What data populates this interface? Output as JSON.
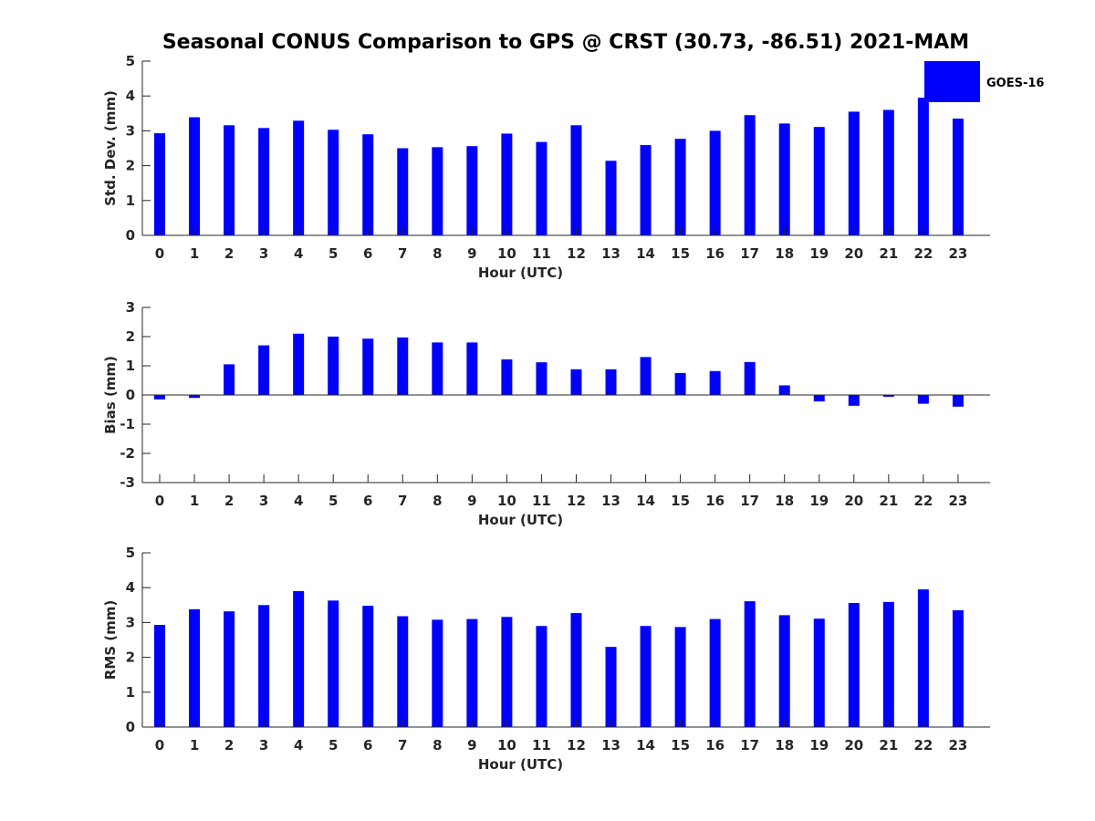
{
  "figure": {
    "title": "Seasonal CONUS Comparison to GPS @ CRST (30.73, -86.51) 2021-MAM",
    "legend_label": "GOES-16",
    "legend_placement": "top-right",
    "bar_color": "#0000ff"
  },
  "chart_data": [
    {
      "type": "bar",
      "panel": "std-dev",
      "title": "Seasonal CONUS Comparison to GPS @ CRST (30.73, -86.51) 2021-MAM",
      "xlabel": "Hour (UTC)",
      "ylabel": "Std. Dev. (mm)",
      "ylim": [
        0,
        5
      ],
      "yticks": [
        0,
        1,
        2,
        3,
        4,
        5
      ],
      "categories": [
        "0",
        "1",
        "2",
        "3",
        "4",
        "5",
        "6",
        "7",
        "8",
        "9",
        "10",
        "11",
        "12",
        "13",
        "14",
        "15",
        "16",
        "17",
        "18",
        "19",
        "20",
        "21",
        "22",
        "23"
      ],
      "series": [
        {
          "name": "GOES-16",
          "values": [
            2.93,
            3.39,
            3.16,
            3.08,
            3.29,
            3.03,
            2.9,
            2.5,
            2.53,
            2.56,
            2.92,
            2.68,
            3.16,
            2.14,
            2.59,
            2.77,
            3.0,
            3.45,
            3.21,
            3.11,
            3.55,
            3.6,
            3.95,
            3.35
          ]
        }
      ],
      "grid": false
    },
    {
      "type": "bar",
      "panel": "bias",
      "xlabel": "Hour (UTC)",
      "ylabel": "Bias (mm)",
      "ylim": [
        -3,
        3
      ],
      "yticks": [
        -3,
        -2,
        -1,
        0,
        1,
        2,
        3
      ],
      "categories": [
        "0",
        "1",
        "2",
        "3",
        "4",
        "5",
        "6",
        "7",
        "8",
        "9",
        "10",
        "11",
        "12",
        "13",
        "14",
        "15",
        "16",
        "17",
        "18",
        "19",
        "20",
        "21",
        "22",
        "23"
      ],
      "series": [
        {
          "name": "GOES-16",
          "values": [
            -0.15,
            -0.1,
            1.05,
            1.7,
            2.1,
            2.0,
            1.93,
            1.97,
            1.8,
            1.8,
            1.22,
            1.12,
            0.88,
            0.88,
            1.3,
            0.75,
            0.82,
            1.13,
            0.33,
            -0.22,
            -0.37,
            -0.06,
            -0.3,
            -0.4
          ]
        }
      ],
      "zero_line": true,
      "grid": false
    },
    {
      "type": "bar",
      "panel": "rms",
      "xlabel": "Hour (UTC)",
      "ylabel": "RMS (mm)",
      "ylim": [
        0,
        5
      ],
      "yticks": [
        0,
        1,
        2,
        3,
        4,
        5
      ],
      "categories": [
        "0",
        "1",
        "2",
        "3",
        "4",
        "5",
        "6",
        "7",
        "8",
        "9",
        "10",
        "11",
        "12",
        "13",
        "14",
        "15",
        "16",
        "17",
        "18",
        "19",
        "20",
        "21",
        "22",
        "23"
      ],
      "series": [
        {
          "name": "GOES-16",
          "values": [
            2.93,
            3.38,
            3.32,
            3.5,
            3.9,
            3.63,
            3.48,
            3.18,
            3.08,
            3.1,
            3.16,
            2.9,
            3.27,
            2.3,
            2.9,
            2.87,
            3.1,
            3.61,
            3.21,
            3.11,
            3.56,
            3.59,
            3.95,
            3.35
          ]
        }
      ],
      "grid": false
    }
  ]
}
